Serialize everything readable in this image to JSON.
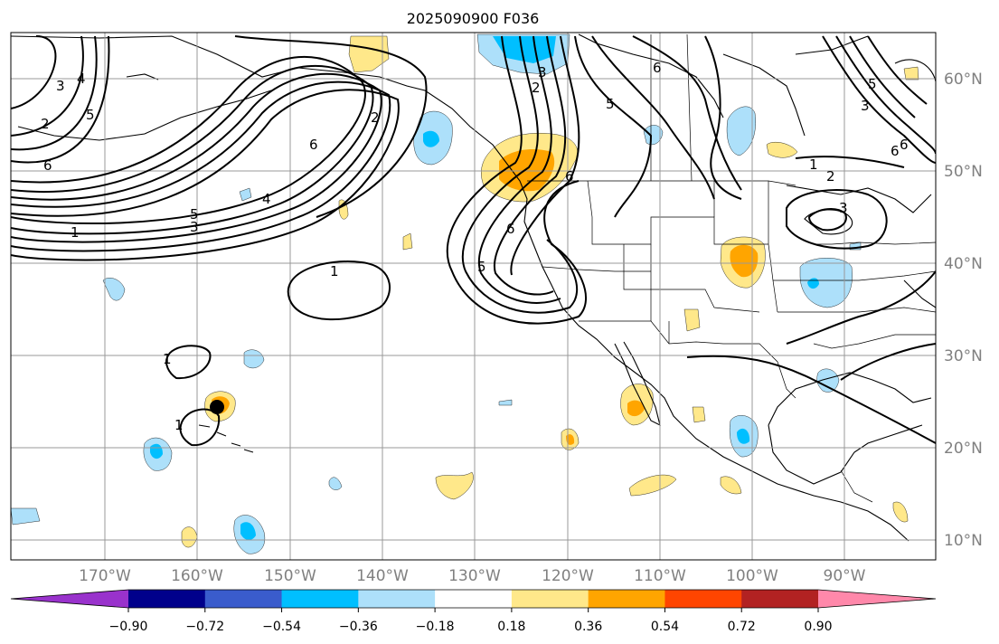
{
  "title": "2025090900 F036",
  "lat_labels": [
    "60°N",
    "50°N",
    "40°N",
    "30°N",
    "20°N",
    "10°N"
  ],
  "lon_labels": [
    "170°W",
    "160°W",
    "150°W",
    "140°W",
    "130°W",
    "120°W",
    "110°W",
    "100°W",
    "90°W"
  ],
  "colorbar": {
    "ticks": [
      "−0.90",
      "−0.72",
      "−0.54",
      "−0.36",
      "−0.18",
      "0.18",
      "0.36",
      "0.54",
      "0.72",
      "0.90"
    ],
    "colors": [
      "#9932cc",
      "#00008b",
      "#3a5ccc",
      "#00bfff",
      "#ade0fa",
      "#ffffff",
      "#ffe88a",
      "#ffa500",
      "#ff4500",
      "#b22222",
      "#ff88aa"
    ]
  },
  "contour_labels": [
    "3",
    "4",
    "2",
    "5",
    "6",
    "6",
    "4",
    "5",
    "3",
    "1",
    "2",
    "1",
    "1",
    "1",
    "3",
    "2",
    "6",
    "5",
    "6",
    "5",
    "6",
    "3",
    "1",
    "2",
    "3",
    "6",
    "6",
    "5"
  ],
  "shading_colors": {
    "light_blue": "#ade0fa",
    "blue": "#00bfff",
    "yellow": "#ffe88a",
    "orange": "#ffa500"
  },
  "marker": "station-dot"
}
